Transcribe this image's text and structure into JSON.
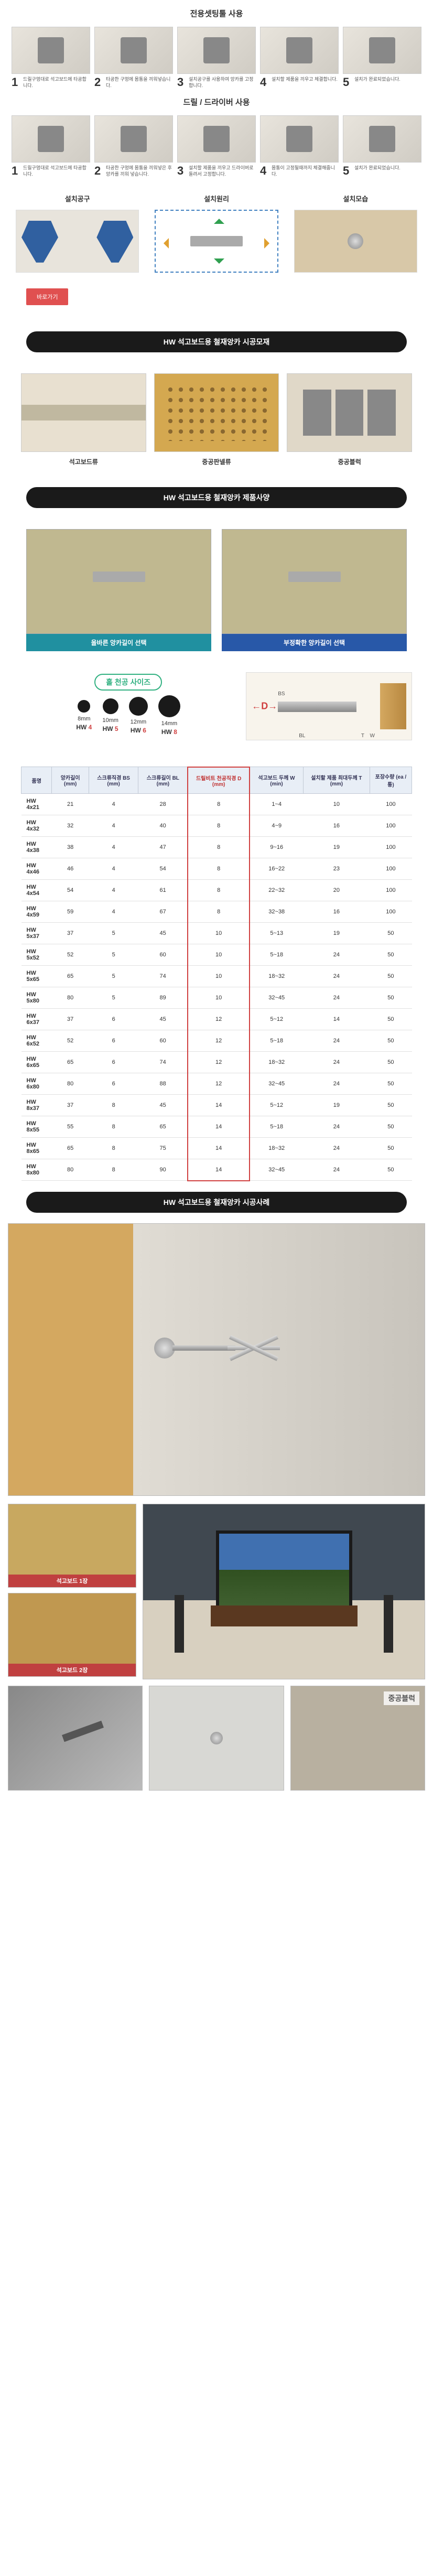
{
  "sections": {
    "tool_use": "전용셋팅툴 사용",
    "drill_use": "드릴 / 드라이버 사용",
    "info_tool": "설치공구",
    "info_principle": "설치원리",
    "info_look": "설치모습",
    "link_button": "바로가기",
    "banner_material": "HW 석고보드용 철재앙카 시공모재",
    "banner_spec": "HW 석고보드용 철재앙카 제품사양",
    "banner_case": "HW 석고보드용 철재앙카 시공사례",
    "hole_title": "홀 천공 사이즈"
  },
  "steps_tool": [
    {
      "num": "1",
      "text": "드릴구멍대로 석고보드에 타공합니다."
    },
    {
      "num": "2",
      "text": "타공한 구멍에 몸통을 끼워넣습니다."
    },
    {
      "num": "3",
      "text": "설치공구를 사용하여 앙카를 고정합니다."
    },
    {
      "num": "4",
      "text": "설치할 제품을 끼우고 체결합니다."
    },
    {
      "num": "5",
      "text": "설치가 완료되었습니다."
    }
  ],
  "steps_drill": [
    {
      "num": "1",
      "text": "드릴구멍대로 석고보드에 타공합니다."
    },
    {
      "num": "2",
      "text": "타공한 구멍에 몸통을 끼워넣은 후 앙카를 끼워 넣습니다."
    },
    {
      "num": "3",
      "text": "설치할 제품을 끼우고 드라이버로 돌려서 고정합니다."
    },
    {
      "num": "4",
      "text": "몸통이 고정될때까지 체결해줍니다."
    },
    {
      "num": "5",
      "text": "설치가 완료되었습니다."
    }
  ],
  "materials": [
    {
      "label": "석고보드류"
    },
    {
      "label": "중공판넬류"
    },
    {
      "label": "중공블럭"
    }
  ],
  "compare": [
    {
      "label": "올바른 앙카길이 선택",
      "cls": "teal"
    },
    {
      "label": "부정확한 앙카길이 선택",
      "cls": ""
    }
  ],
  "holes": [
    {
      "mm": "8mm",
      "hw": "HW",
      "n": "4",
      "cls": "hole-8"
    },
    {
      "mm": "10mm",
      "hw": "HW",
      "n": "5",
      "cls": "hole-10"
    },
    {
      "mm": "12mm",
      "hw": "HW",
      "n": "6",
      "cls": "hole-12"
    },
    {
      "mm": "14mm",
      "hw": "HW",
      "n": "8",
      "cls": "hole-14"
    }
  ],
  "diagram_d": "D",
  "table": {
    "headers": [
      "품명",
      "앙카길이 (mm)",
      "스크류직경 BS (mm)",
      "스크류길이 BL (mm)",
      "드릴비트 천공직경 D (mm)",
      "석고보드 두께 W (min)",
      "설치할 제품 최대두께 T (mm)",
      "포장수량 (ea / 통)"
    ],
    "rows": [
      [
        "HW 4x21",
        "21",
        "4",
        "28",
        "8",
        "1~4",
        "10",
        "100"
      ],
      [
        "HW 4x32",
        "32",
        "4",
        "40",
        "8",
        "4~9",
        "16",
        "100"
      ],
      [
        "HW 4x38",
        "38",
        "4",
        "47",
        "8",
        "9~16",
        "19",
        "100"
      ],
      [
        "HW 4x46",
        "46",
        "4",
        "54",
        "8",
        "16~22",
        "23",
        "100"
      ],
      [
        "HW 4x54",
        "54",
        "4",
        "61",
        "8",
        "22~32",
        "20",
        "100"
      ],
      [
        "HW 4x59",
        "59",
        "4",
        "67",
        "8",
        "32~38",
        "16",
        "100"
      ],
      [
        "HW 5x37",
        "37",
        "5",
        "45",
        "10",
        "5~13",
        "19",
        "50"
      ],
      [
        "HW 5x52",
        "52",
        "5",
        "60",
        "10",
        "5~18",
        "24",
        "50"
      ],
      [
        "HW 5x65",
        "65",
        "5",
        "74",
        "10",
        "18~32",
        "24",
        "50"
      ],
      [
        "HW 5x80",
        "80",
        "5",
        "89",
        "10",
        "32~45",
        "24",
        "50"
      ],
      [
        "HW 6x37",
        "37",
        "6",
        "45",
        "12",
        "5~12",
        "14",
        "50"
      ],
      [
        "HW 6x52",
        "52",
        "6",
        "60",
        "12",
        "5~18",
        "24",
        "50"
      ],
      [
        "HW 6x65",
        "65",
        "6",
        "74",
        "12",
        "18~32",
        "24",
        "50"
      ],
      [
        "HW 6x80",
        "80",
        "6",
        "88",
        "12",
        "32~45",
        "24",
        "50"
      ],
      [
        "HW 8x37",
        "37",
        "8",
        "45",
        "14",
        "5~12",
        "19",
        "50"
      ],
      [
        "HW 8x55",
        "55",
        "8",
        "65",
        "14",
        "5~18",
        "24",
        "50"
      ],
      [
        "HW 8x65",
        "65",
        "8",
        "75",
        "14",
        "18~32",
        "24",
        "50"
      ],
      [
        "HW 8x80",
        "80",
        "8",
        "90",
        "14",
        "32~45",
        "24",
        "50"
      ]
    ]
  },
  "case_labels": {
    "board1": "석고보드 1장",
    "board2": "석고보드 2장",
    "block": "중공블럭"
  }
}
